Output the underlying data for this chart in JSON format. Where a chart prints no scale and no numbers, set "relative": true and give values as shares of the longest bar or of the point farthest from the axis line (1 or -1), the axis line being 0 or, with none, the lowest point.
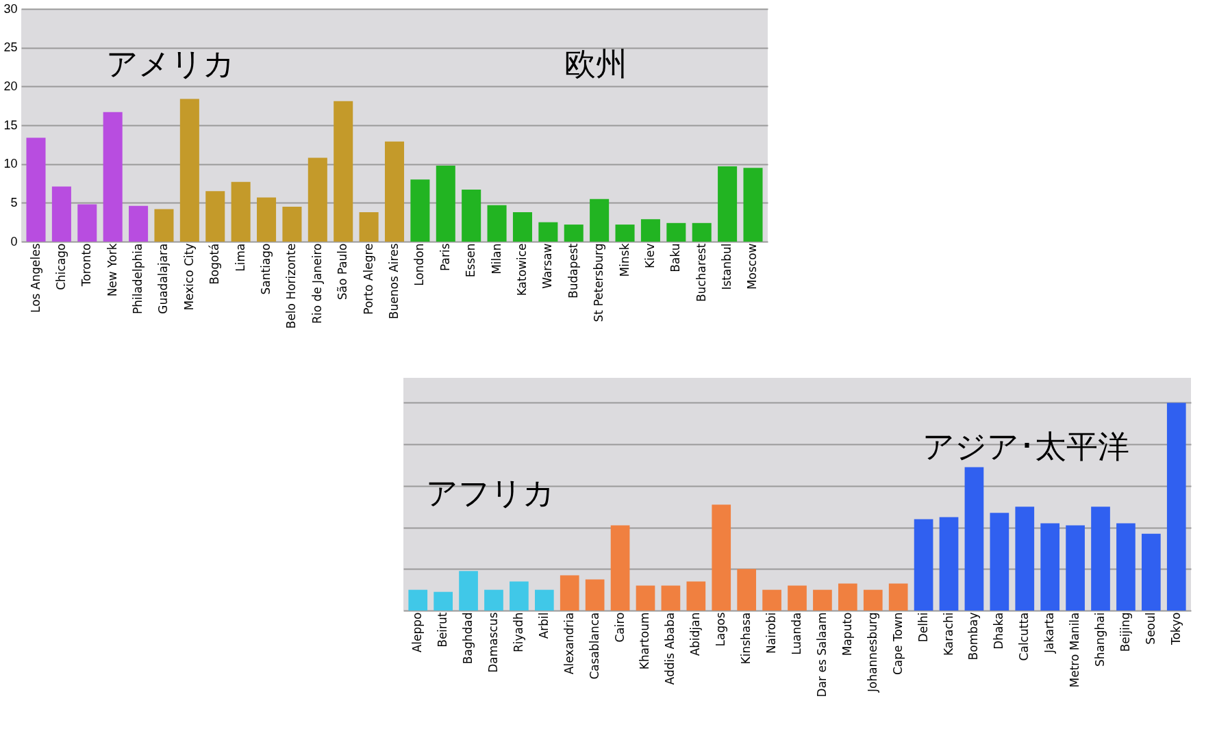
{
  "chart_data": [
    {
      "type": "bar",
      "categories": [
        "Los Angeles",
        "Chicago",
        "Toronto",
        "New York",
        "Philadelphia",
        "Guadalajara",
        "Mexico City",
        "Bogotá",
        "Lima",
        "Santiago",
        "Belo Horizonte",
        "Rio de Janeiro",
        "São Paulo",
        "Porto Alegre",
        "Buenos Aires",
        "London",
        "Paris",
        "Essen",
        "Milan",
        "Katowice",
        "Warsaw",
        "Budapest",
        "St Petersburg",
        "Minsk",
        "Kiev",
        "Baku",
        "Bucharest",
        "Istanbul",
        "Moscow"
      ],
      "values": [
        13.4,
        7.1,
        4.8,
        16.7,
        4.6,
        4.2,
        18.4,
        6.5,
        7.7,
        5.7,
        4.5,
        10.8,
        18.1,
        3.8,
        12.9,
        8.0,
        9.8,
        6.7,
        4.7,
        3.8,
        2.5,
        2.2,
        5.5,
        2.2,
        2.9,
        2.4,
        2.4,
        9.7,
        9.5
      ],
      "colors": [
        "#b84de0",
        "#b84de0",
        "#b84de0",
        "#b84de0",
        "#b84de0",
        "#c49a2a",
        "#c49a2a",
        "#c49a2a",
        "#c49a2a",
        "#c49a2a",
        "#c49a2a",
        "#c49a2a",
        "#c49a2a",
        "#c49a2a",
        "#c49a2a",
        "#22b422",
        "#22b422",
        "#22b422",
        "#22b422",
        "#22b422",
        "#22b422",
        "#22b422",
        "#22b422",
        "#22b422",
        "#22b422",
        "#22b422",
        "#22b422",
        "#22b422",
        "#22b422"
      ],
      "ylim": [
        0,
        30
      ],
      "yticks": [
        0,
        5,
        10,
        15,
        20,
        25,
        30
      ],
      "grid": "y",
      "annotations": [
        "アメリカ",
        "欧州"
      ]
    },
    {
      "type": "bar",
      "categories": [
        "Aleppo",
        "Beirut",
        "Baghdad",
        "Damascus",
        "Riyadh",
        "Arbil",
        "Alexandria",
        "Casablanca",
        "Cairo",
        "Khartoum",
        "Addis Ababa",
        "Abidjan",
        "Lagos",
        "Kinshasa",
        "Nairobi",
        "Luanda",
        "Dar es Salaam",
        "Maputo",
        "Johannesburg",
        "Cape Town",
        "Delhi",
        "Karachi",
        "Bombay",
        "Dhaka",
        "Calcutta",
        "Jakarta",
        "Metro Manila",
        "Shanghai",
        "Beijing",
        "Seoul",
        "Tokyo"
      ],
      "values": [
        0.1,
        0.09,
        0.19,
        0.1,
        0.14,
        0.1,
        0.17,
        0.15,
        0.41,
        0.12,
        0.12,
        0.14,
        0.51,
        0.2,
        0.1,
        0.12,
        0.1,
        0.13,
        0.1,
        0.13,
        0.44,
        0.45,
        0.69,
        0.47,
        0.5,
        0.42,
        0.41,
        0.5,
        0.42,
        0.37,
        1
      ],
      "relative": true,
      "colors": [
        "#40c8e8",
        "#40c8e8",
        "#40c8e8",
        "#40c8e8",
        "#40c8e8",
        "#40c8e8",
        "#f08040",
        "#f08040",
        "#f08040",
        "#f08040",
        "#f08040",
        "#f08040",
        "#f08040",
        "#f08040",
        "#f08040",
        "#f08040",
        "#f08040",
        "#f08040",
        "#f08040",
        "#f08040",
        "#3060f0",
        "#3060f0",
        "#3060f0",
        "#3060f0",
        "#3060f0",
        "#3060f0",
        "#3060f0",
        "#3060f0",
        "#3060f0",
        "#3060f0",
        "#3060f0"
      ],
      "grid": "y",
      "annotations": [
        "アフリカ",
        "アジア･太平洋"
      ]
    }
  ]
}
